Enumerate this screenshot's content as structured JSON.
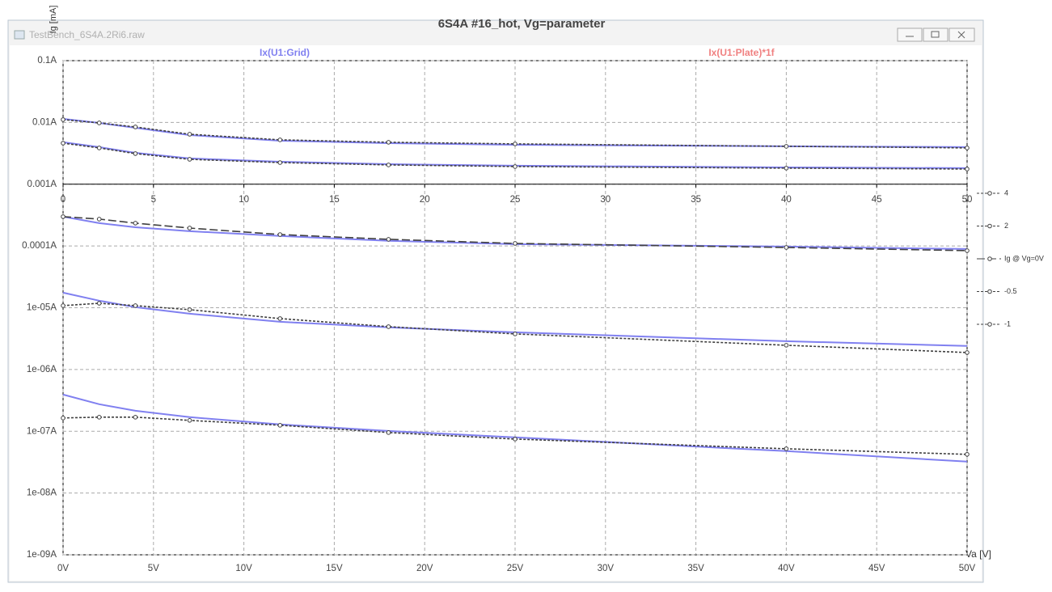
{
  "window": {
    "title": "TestBench_6S4A.2Ri6.raw"
  },
  "chart_data": {
    "type": "line",
    "title": "6S4A #16_hot, Vg=parameter",
    "y_label": "Ig [mA]",
    "x_label": "Va [V]",
    "log_y": true,
    "grid": true,
    "legend": "right",
    "x": [
      0,
      2,
      4,
      7,
      12,
      18,
      25,
      40,
      50
    ],
    "xlim": [
      0,
      50
    ],
    "xticks": [
      {
        "value": 0,
        "label": "0V"
      },
      {
        "value": 5,
        "label": "5V"
      },
      {
        "value": 10,
        "label": "10V"
      },
      {
        "value": 15,
        "label": "15V"
      },
      {
        "value": 20,
        "label": "20V"
      },
      {
        "value": 25,
        "label": "25V"
      },
      {
        "value": 30,
        "label": "30V"
      },
      {
        "value": 35,
        "label": "35V"
      },
      {
        "value": 40,
        "label": "40V"
      },
      {
        "value": 45,
        "label": "45V"
      },
      {
        "value": 50,
        "label": "50V"
      }
    ],
    "overlay_xticks": [
      0,
      5,
      10,
      15,
      20,
      25,
      30,
      35,
      40,
      45,
      50
    ],
    "ylim": [
      1e-09,
      0.1
    ],
    "yticks": [
      {
        "value": 0.1,
        "label": "0.1A"
      },
      {
        "value": 0.01,
        "label": "0.01A"
      },
      {
        "value": 0.001,
        "label": "0.001A"
      },
      {
        "value": 0.0001,
        "label": "0.0001A"
      },
      {
        "value": 1e-05,
        "label": "1e-05A"
      },
      {
        "value": 1e-06,
        "label": "1e-06A"
      },
      {
        "value": 1e-07,
        "label": "1e-07A"
      },
      {
        "value": 1e-08,
        "label": "1e-08A"
      },
      {
        "value": 1e-09,
        "label": "1e-09A"
      }
    ],
    "trace_labels": [
      {
        "name": "Ix(U1:Grid)",
        "color": "#8080f0"
      },
      {
        "name": "Ix(U1:Plate)*1f",
        "color": "#f08080"
      }
    ],
    "grid_curves": {
      "color": "#8080f0",
      "values": [
        [
          0.0114,
          0.00982,
          0.0082,
          0.00625,
          0.00506,
          0.00462,
          0.00435,
          0.0041,
          0.00398
        ],
        [
          0.00477,
          0.00398,
          0.00322,
          0.00261,
          0.00231,
          0.00211,
          0.00199,
          0.00187,
          0.00182
        ],
        [
          0.000298,
          0.000234,
          0.000201,
          0.000173,
          0.000145,
          0.000121,
          0.000107,
          9.76e-05,
          8.92e-05
        ],
        [
          1.75e-05,
          1.3e-05,
          1.02e-05,
          8e-06,
          5.92e-06,
          4.8e-06,
          4e-06,
          2.87e-06,
          2.4e-06
        ],
        [
          3.93e-07,
          2.74e-07,
          2.15e-07,
          1.69e-07,
          1.29e-07,
          1.01e-07,
          7.96e-08,
          4.77e-08,
          3.22e-08
        ]
      ]
    },
    "series": [
      {
        "name": "4",
        "color": "#404040",
        "dash": "3,2",
        "values": [
          0.0111,
          0.00982,
          0.00845,
          0.00644,
          0.00522,
          0.00477,
          0.00449,
          0.0041,
          0.00386
        ]
      },
      {
        "name": "2",
        "color": "#404040",
        "dash": "3,2",
        "values": [
          0.00462,
          0.00386,
          0.00313,
          0.00253,
          0.00224,
          0.00205,
          0.00193,
          0.00182,
          0.00176
        ]
      },
      {
        "name": "Ig @ Vg=0V",
        "color": "#404040",
        "dash": "10,4",
        "values": [
          0.000298,
          0.000272,
          0.000234,
          0.000195,
          0.000153,
          0.000128,
          0.00011,
          9.46e-05,
          8.39e-05
        ]
      },
      {
        "name": "-0.5",
        "color": "#404040",
        "dash": "3,2",
        "values": [
          1.08e-05,
          1.18e-05,
          1.08e-05,
          9.31e-06,
          6.68e-06,
          4.94e-06,
          3.77e-06,
          2.47e-06,
          1.88e-06
        ]
      },
      {
        "name": "-1",
        "color": "#404040",
        "dash": "3,2",
        "values": [
          1.64e-07,
          1.69e-07,
          1.69e-07,
          1.5e-07,
          1.25e-07,
          9.53e-08,
          7.48e-08,
          5.21e-08,
          4.23e-08
        ]
      }
    ]
  }
}
